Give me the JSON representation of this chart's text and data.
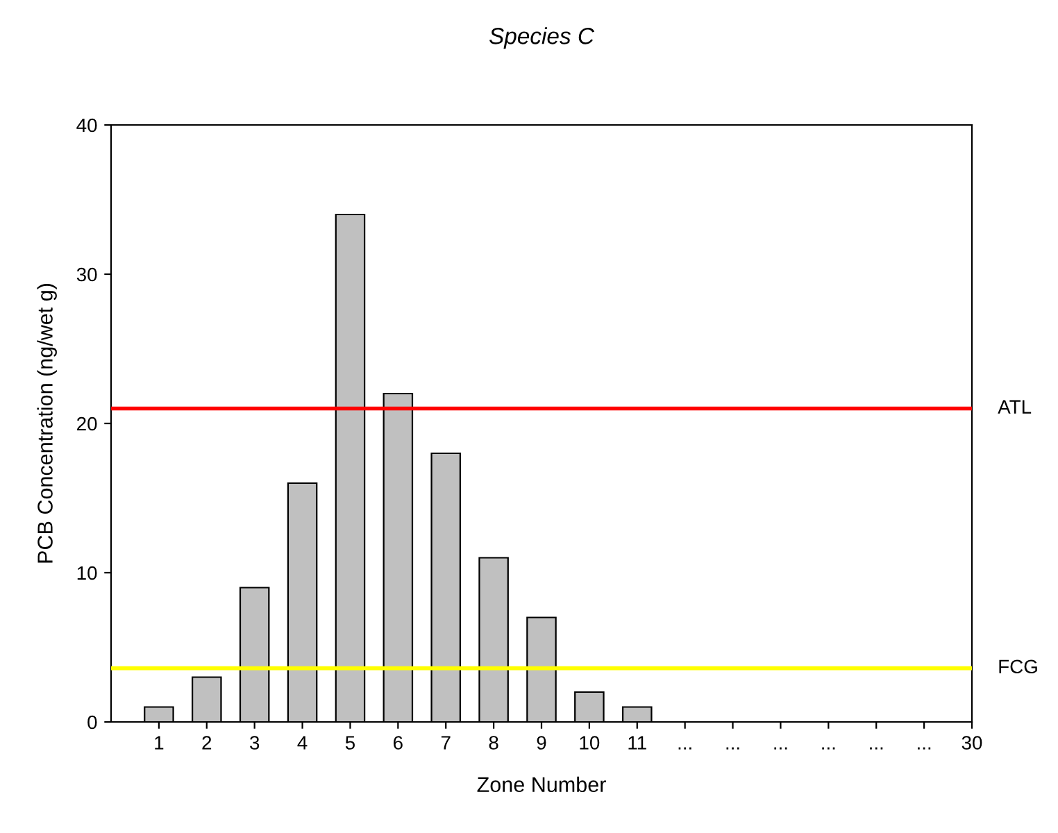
{
  "chart_data": {
    "type": "bar",
    "title": "Species C",
    "xlabel": "Zone Number",
    "ylabel": "PCB Concentration (ng/wet g)",
    "categories": [
      "1",
      "2",
      "3",
      "4",
      "5",
      "6",
      "7",
      "8",
      "9",
      "10",
      "11",
      "...",
      "...",
      "...",
      "...",
      "...",
      "...",
      "30"
    ],
    "values": [
      1,
      3,
      9,
      16,
      34,
      22,
      18,
      11,
      7,
      2,
      1,
      null,
      null,
      null,
      null,
      null,
      null,
      null
    ],
    "color": "#c0c0c0",
    "ylim": [
      0,
      40
    ],
    "yticks": [
      0,
      10,
      20,
      30,
      40
    ],
    "ref_lines": [
      {
        "axis": "y",
        "value": 21,
        "label": "ATL",
        "color": "#ff0000"
      },
      {
        "axis": "y",
        "value": 3.6,
        "label": "FCG",
        "color": "#ffff00"
      }
    ],
    "grid": false,
    "legend": false
  }
}
